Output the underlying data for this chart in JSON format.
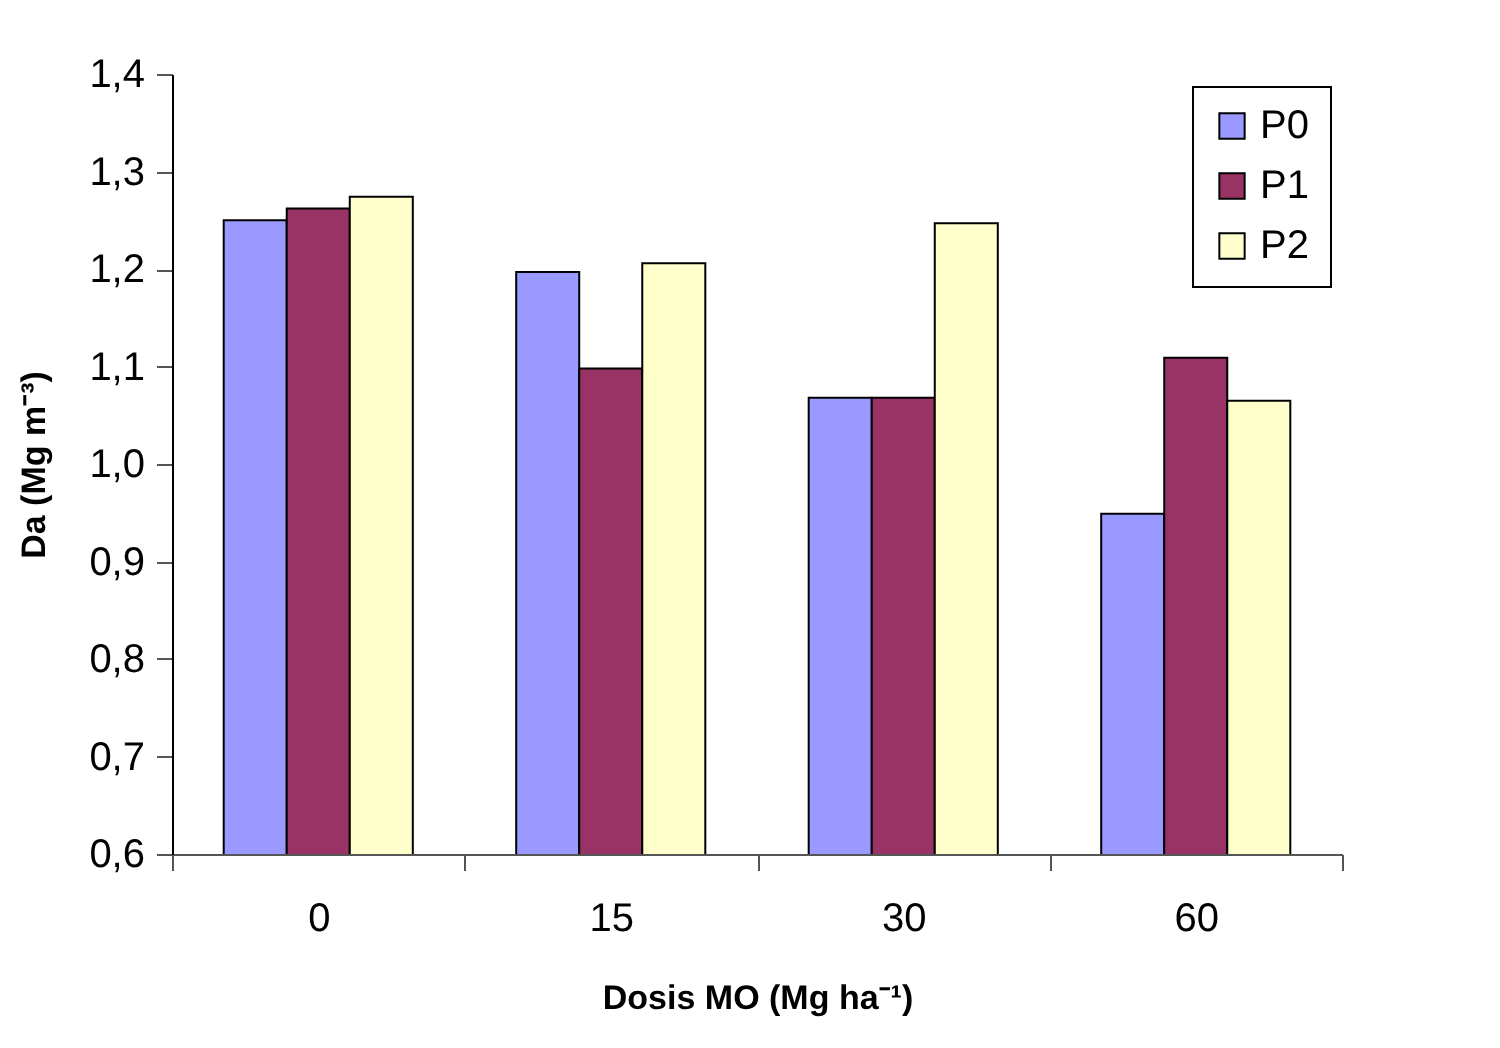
{
  "chart_data": {
    "type": "bar",
    "xlabel": "Dosis MO (Mg ha⁻¹)",
    "ylabel": "Da (Mg m⁻³)",
    "categories": [
      "0",
      "15",
      "30",
      "60"
    ],
    "series": [
      {
        "name": "P0",
        "color": "#9999ff",
        "values": [
          1.25,
          1.197,
          1.068,
          0.949
        ]
      },
      {
        "name": "P1",
        "color": "#993366",
        "values": [
          1.262,
          1.098,
          1.068,
          1.109
        ]
      },
      {
        "name": "P2",
        "color": "#ffffcc",
        "values": [
          1.274,
          1.206,
          1.247,
          1.065
        ]
      }
    ],
    "ylim": [
      0.6,
      1.4
    ],
    "yticks": [
      {
        "value": 0.6,
        "label": "0,6"
      },
      {
        "value": 0.7,
        "label": "0,7"
      },
      {
        "value": 0.8,
        "label": "0,8"
      },
      {
        "value": 0.9,
        "label": "0,9"
      },
      {
        "value": 1.0,
        "label": "1,0"
      },
      {
        "value": 1.1,
        "label": "1,1"
      },
      {
        "value": 1.2,
        "label": "1,2"
      },
      {
        "value": 1.3,
        "label": "1,3"
      },
      {
        "value": 1.4,
        "label": "1,4"
      }
    ],
    "grid": false,
    "legend": "top right"
  }
}
